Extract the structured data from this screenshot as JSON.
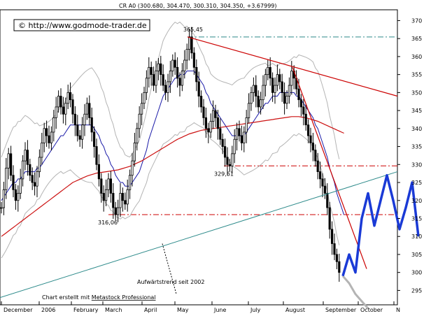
{
  "chart_data": {
    "type": "candlestick",
    "title": "CR A0 (300.680, 304.470, 300.310, 304.350, +3.67999)",
    "source": "© http://www.godmode-trader.de",
    "footer_prefix": "Chart erstellt mit ",
    "footer_link": "Metastock Professional",
    "x_labels": [
      "December",
      "2006",
      "February",
      "March",
      "April",
      "May",
      "June",
      "July",
      "August",
      "September",
      "October",
      "N"
    ],
    "y_ticks": [
      295,
      300,
      305,
      310,
      315,
      320,
      325,
      330,
      335,
      340,
      345,
      350,
      355,
      360,
      365,
      370
    ],
    "ylim": [
      291,
      373
    ],
    "annotations": [
      {
        "text": "365,45",
        "value": 365.45
      },
      {
        "text": "329,61",
        "value": 329.61
      },
      {
        "text": "316,06",
        "value": 316.06
      },
      {
        "text": "Aufwärtstrend seit 2002"
      }
    ],
    "reference_levels": [
      {
        "value": 365.45,
        "style": "dashdot",
        "color": "#2e8b8b"
      },
      {
        "value": 329.61,
        "style": "dashdot",
        "color": "#cc0000"
      },
      {
        "value": 316.06,
        "style": "dashdot",
        "color": "#cc0000"
      }
    ],
    "colors": {
      "candles": "#000000",
      "ma_short": "#1a1aa8",
      "ma_long": "#cc1111",
      "bollinger": "#b4b4b4",
      "trend_down": "#cc0000",
      "trend_up": "#2e8b8b",
      "projection_main": "#1a3ad6",
      "projection_alt": "#b4b4b4"
    },
    "close_series": [
      318,
      323,
      329,
      333,
      327,
      323,
      320,
      322,
      326,
      331,
      334,
      330,
      327,
      325,
      324,
      328,
      332,
      336,
      340,
      338,
      336,
      339,
      343,
      346,
      349,
      346,
      344,
      347,
      350,
      348,
      344,
      341,
      338,
      337,
      341,
      344,
      347,
      343,
      339,
      335,
      330,
      326,
      322,
      320,
      323,
      326,
      322,
      318,
      316.06,
      318,
      322,
      320,
      319,
      323,
      327,
      331,
      336,
      340,
      344,
      347,
      350,
      354,
      357,
      355,
      352,
      356,
      358,
      355,
      352,
      350,
      353,
      356,
      359,
      357,
      354,
      352,
      356,
      359,
      362,
      365.45,
      361,
      357,
      353,
      349,
      346,
      343,
      340,
      339,
      342,
      345,
      343,
      340,
      337,
      335,
      332,
      330,
      329.61,
      333,
      337,
      340,
      338,
      336,
      339,
      343,
      347,
      350,
      352,
      349,
      346,
      348,
      352,
      355,
      357,
      354,
      350,
      352,
      355,
      353,
      350,
      347,
      349,
      352,
      356,
      354,
      351,
      348,
      346,
      344,
      341,
      338,
      336,
      334,
      331,
      328,
      326,
      324,
      322,
      318,
      312,
      308,
      305,
      303,
      300
    ],
    "ma_short_series": [
      320,
      321,
      322,
      323,
      324,
      325,
      325,
      326,
      326,
      327,
      328,
      328,
      328,
      328,
      328,
      329,
      329,
      330,
      331,
      332,
      333,
      334,
      335,
      336,
      337,
      338,
      338,
      339,
      340,
      341,
      341,
      341,
      341,
      341,
      341,
      341,
      341,
      341,
      341,
      340,
      339,
      338,
      336,
      335,
      333,
      332,
      330,
      329,
      327,
      326,
      325,
      325,
      324,
      324,
      324,
      325,
      326,
      327,
      328,
      330,
      332,
      334,
      337,
      339,
      341,
      343,
      345,
      347,
      349,
      350,
      351,
      352,
      353,
      354,
      354,
      355,
      355,
      355,
      356,
      356,
      356,
      356,
      355,
      354,
      353,
      352,
      350,
      349,
      347,
      346,
      345,
      344,
      343,
      342,
      341,
      340,
      339,
      338,
      338,
      338,
      338,
      338,
      338,
      339,
      340,
      341,
      342,
      343,
      344,
      345,
      346,
      347,
      347,
      348,
      349,
      349,
      349,
      350,
      350,
      350,
      350,
      350,
      350,
      350,
      349,
      349,
      348,
      347,
      346,
      345,
      344,
      343,
      341,
      340,
      338,
      336,
      334,
      332,
      329,
      327,
      325,
      322,
      320,
      318,
      316
    ],
    "ma_long_series": [
      310,
      310.5,
      311,
      311.5,
      312,
      312.5,
      313,
      313.5,
      314,
      314.5,
      315,
      315.5,
      316,
      316.5,
      317,
      317.5,
      318,
      318.5,
      319,
      319.5,
      320,
      320.5,
      321,
      321.5,
      322,
      322.5,
      323,
      323.5,
      324,
      324.5,
      325,
      325.3,
      325.6,
      325.9,
      326.2,
      326.5,
      326.8,
      327,
      327.2,
      327.4,
      327.6,
      327.7,
      327.8,
      327.9,
      328,
      328.1,
      328.2,
      328.3,
      328.4,
      328.5,
      328.7,
      328.9,
      329.1,
      329.3,
      329.5,
      329.8,
      330.1,
      330.4,
      330.7,
      331,
      331.4,
      331.8,
      332.2,
      332.6,
      333,
      333.4,
      333.8,
      334.2,
      334.6,
      335,
      335.4,
      335.8,
      336.2,
      336.6,
      337,
      337.3,
      337.6,
      337.9,
      338.2,
      338.5,
      338.7,
      338.9,
      339.1,
      339.3,
      339.5,
      339.6,
      339.7,
      339.8,
      339.9,
      340,
      340.1,
      340.2,
      340.3,
      340.4,
      340.5,
      340.6,
      340.7,
      340.8,
      340.9,
      341,
      341.1,
      341.2,
      341.3,
      341.4,
      341.5,
      341.6,
      341.7,
      341.8,
      341.9,
      342,
      342.1,
      342.2,
      342.3,
      342.4,
      342.5,
      342.6,
      342.7,
      342.8,
      342.9,
      343,
      343.1,
      343.2,
      343.3,
      343.3,
      343.3,
      343.3,
      343.2,
      343.1,
      343,
      342.8,
      342.6,
      342.4,
      342.2,
      342,
      341.7,
      341.4,
      341.1,
      340.8,
      340.5,
      340.2,
      339.9,
      339.6,
      339.3,
      339,
      338.7
    ],
    "projection_main": [
      [
        303,
        299
      ],
      [
        304,
        305
      ],
      [
        305,
        300
      ],
      [
        306,
        315
      ],
      [
        307,
        322
      ],
      [
        308,
        313
      ],
      [
        309,
        320
      ],
      [
        310,
        327
      ],
      [
        311,
        320
      ],
      [
        312,
        312
      ],
      [
        313,
        318
      ],
      [
        314,
        325
      ],
      [
        315,
        310
      ]
    ],
    "projection_alt": [
      [
        303,
        299
      ],
      [
        304,
        297
      ],
      [
        305,
        294
      ],
      [
        306,
        292
      ],
      [
        307,
        290
      ]
    ]
  }
}
